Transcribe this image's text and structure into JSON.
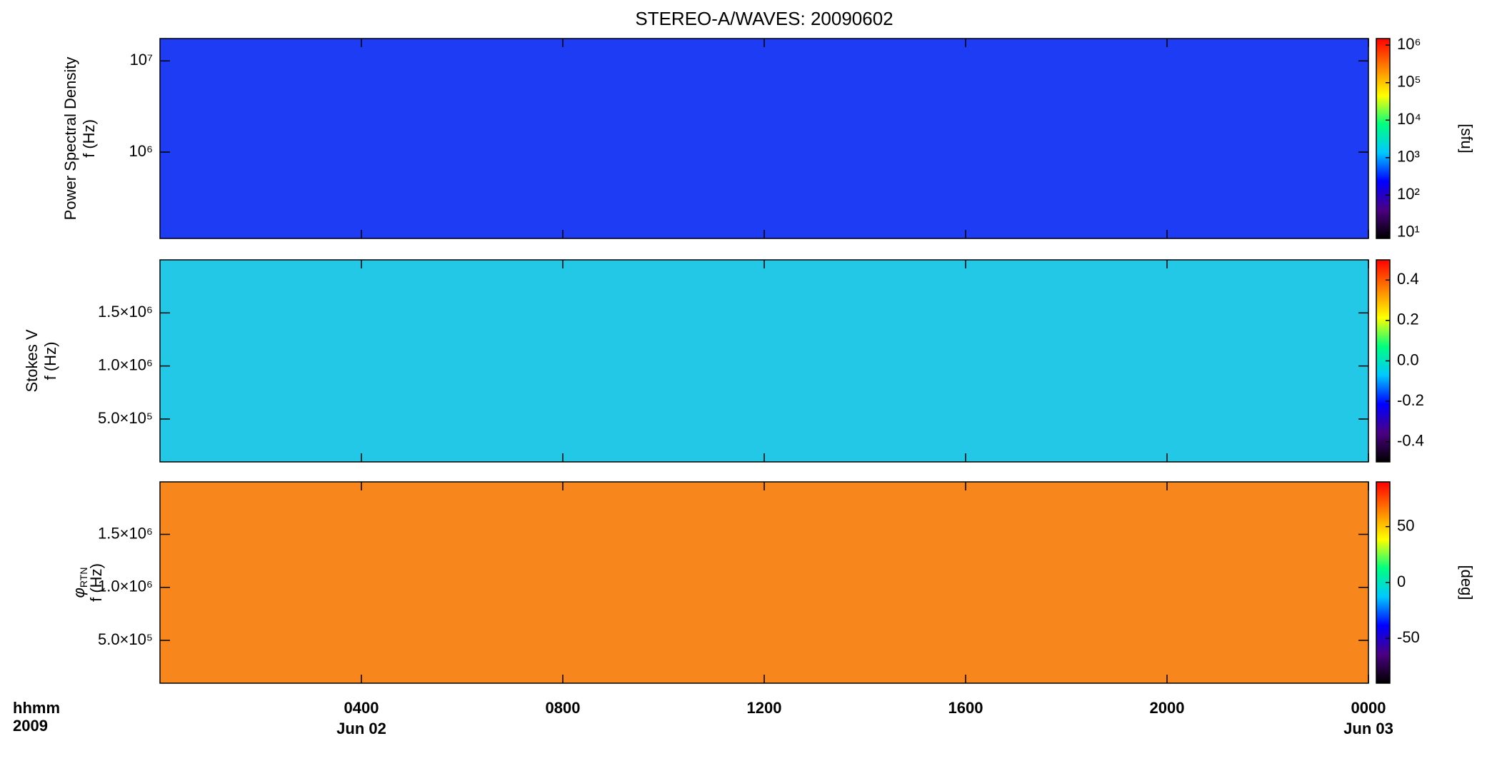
{
  "title": "STEREO-A/WAVES: 20090602",
  "colormap": [
    "#000000",
    "#4b0082",
    "#0000ff",
    "#00c8ff",
    "#00ff80",
    "#ffff00",
    "#ff8000",
    "#ff0000"
  ],
  "x_axis": {
    "xlim": [
      0,
      24
    ],
    "xticks": [
      {
        "value": 4,
        "label": "0400"
      },
      {
        "value": 8,
        "label": "0800"
      },
      {
        "value": 12,
        "label": "1200"
      },
      {
        "value": 16,
        "label": "1600"
      },
      {
        "value": 20,
        "label": "2000"
      },
      {
        "value": 24,
        "label": "0000"
      }
    ],
    "date_labels": [
      {
        "value": 4,
        "label": "Jun 02"
      },
      {
        "value": 24,
        "label": "Jun 03"
      }
    ],
    "unit_label": "hhmm",
    "year_label": "2009"
  },
  "chart_data": [
    {
      "type": "spectrogram",
      "ylabel": [
        "Power Spectral Density",
        "f (Hz)"
      ],
      "color": "#1f3cf5",
      "ylim": [
        113000,
        17600000
      ],
      "log_y": true,
      "yticks": [
        {
          "value": 1000000,
          "label": "10⁶"
        },
        {
          "value": 10000000,
          "label": "10⁷"
        }
      ],
      "colorbar": {
        "log": true,
        "clim": [
          7,
          1500000
        ],
        "label": "[sfu]",
        "ticks": [
          {
            "value": 10,
            "label": "10¹"
          },
          {
            "value": 100,
            "label": "10²"
          },
          {
            "value": 1000,
            "label": "10³"
          },
          {
            "value": 10000,
            "label": "10⁴"
          },
          {
            "value": 100000,
            "label": "10⁵"
          },
          {
            "value": 1000000,
            "label": "10⁶"
          }
        ]
      }
    },
    {
      "type": "spectrogram",
      "ylabel": [
        "Stokes V",
        "f (Hz)"
      ],
      "color": "#22c8e6",
      "ylim": [
        96000,
        2000000
      ],
      "log_y": false,
      "yticks": [
        {
          "value": 500000,
          "label": "5.0×10⁵"
        },
        {
          "value": 1000000,
          "label": "1.0×10⁶"
        },
        {
          "value": 1500000,
          "label": "1.5×10⁶"
        }
      ],
      "colorbar": {
        "log": false,
        "clim": [
          -0.5,
          0.5
        ],
        "ticks": [
          -0.4,
          -0.2,
          {
            "value": 0,
            "label": "0.0"
          },
          0.2,
          0.4
        ]
      }
    },
    {
      "type": "spectrogram",
      "ylabel": [
        "φ",
        "RTN",
        "f (Hz)"
      ],
      "color": "#f7861c",
      "ylim": [
        96000,
        1995000
      ],
      "log_y": false,
      "yticks": [
        {
          "value": 500000,
          "label": "5.0×10⁵"
        },
        {
          "value": 1000000,
          "label": "1.0×10⁶"
        },
        {
          "value": 1500000,
          "label": "1.5×10⁶"
        }
      ],
      "colorbar": {
        "log": false,
        "clim": [
          -90,
          90
        ],
        "label": "[deg]",
        "ticks": [
          -50,
          0,
          50
        ]
      }
    }
  ]
}
